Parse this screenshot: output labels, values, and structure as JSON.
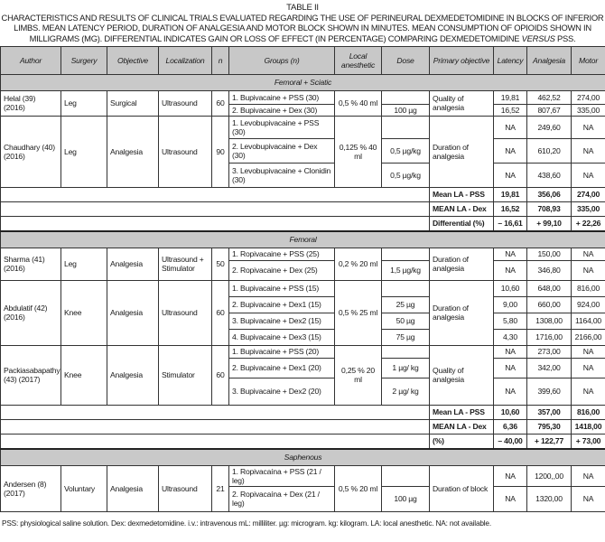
{
  "caption": {
    "label": "TABLE II",
    "text_before": "CHARACTERISTICS AND RESULTS OF CLINICAL TRIALS EVALUATED REGARDING THE USE OF PERINEURAL DEXMEDETOMIDINE IN BLOCKS OF INFERIOR LIMBS. MEAN LATENCY PERIOD, DURATION OF ANALGESIA AND MOTOR BLOCK SHOWN IN MINUTES. MEAN CONSUMPTION OF OPIOIDS SHOWN IN MILLIGRAMS (MG). DIFFERENTIAL INDICATES GAIN OR LOSS OF EFFECT (IN PERCENTAGE) COMPARING DEXMEDETOMIDINE ",
    "text_italic": "VERSUS",
    "text_after": " PSS."
  },
  "columns": [
    "Author",
    "Surgery",
    "Objective",
    "Localization",
    "n",
    "Groups (n)",
    "Local anesthetic",
    "Dose",
    "Primary objective",
    "Latency",
    "Analgesia",
    "Motor"
  ],
  "sections": [
    {
      "title": "Femoral + Sciatic",
      "studies": [
        {
          "author": "Helal (39) (2016)",
          "surgery": "Leg",
          "objective": "Surgical",
          "localization": "Ultrasound",
          "n": "60",
          "local_anesthetic": "0,5 % 40 ml",
          "primary_objective": "Quality of analgesia",
          "groups": [
            {
              "group": "1. Bupivacaine + PSS (30)",
              "dose": "",
              "latency": "19,81",
              "analgesia": "462,52",
              "motor": "274,00"
            },
            {
              "group": "2. Bupivacaine + Dex (30)",
              "dose": "100 µg",
              "latency": "16,52",
              "analgesia": "807,67",
              "motor": "335,00"
            }
          ]
        },
        {
          "author": "Chaudhary (40) (2016)",
          "surgery": "Leg",
          "objective": "Analgesia",
          "localization": "Ultrasound",
          "n": "90",
          "local_anesthetic": "0,125 % 40 ml",
          "primary_objective": "Duration of analgesia",
          "groups": [
            {
              "group": "1. Levobupivacaine + PSS (30)",
              "dose": "",
              "latency": "NA",
              "analgesia": "249,60",
              "motor": "NA"
            },
            {
              "group": "2. Levobupivacaine + Dex (30)",
              "dose": "0,5 µg/kg",
              "latency": "NA",
              "analgesia": "610,20",
              "motor": "NA"
            },
            {
              "group": "3. Levobupivacaine + Clonidin (30)",
              "dose": "0,5 µg/kg",
              "latency": "NA",
              "analgesia": "438,60",
              "motor": "NA"
            }
          ]
        }
      ],
      "summary": [
        {
          "label": "Mean LA - PSS",
          "latency": "19,81",
          "analgesia": "356,06",
          "motor": "274,00"
        },
        {
          "label": "MEAN LA - Dex",
          "latency": "16,52",
          "analgesia": "708,93",
          "motor": "335,00"
        },
        {
          "label": "Differential (%)",
          "latency": "– 16,61",
          "analgesia": "+ 99,10",
          "motor": "+ 22,26"
        }
      ]
    },
    {
      "title": "Femoral",
      "studies": [
        {
          "author": "Sharma (41) (2016)",
          "surgery": "Leg",
          "objective": "Analgesia",
          "localization": "Ultrasound + Stimulator",
          "n": "50",
          "local_anesthetic": "0,2 % 20 ml",
          "primary_objective": "Duration of analgesia",
          "groups": [
            {
              "group": "1. Ropivacaine + PSS (25)",
              "dose": "",
              "latency": "NA",
              "analgesia": "150,00",
              "motor": "NA"
            },
            {
              "group": "2. Ropivacaine + Dex (25)",
              "dose": "1,5 µg/kg",
              "latency": "NA",
              "analgesia": "346,80",
              "motor": "NA"
            }
          ]
        },
        {
          "author": "Abdulatif (42) (2016)",
          "surgery": "Knee",
          "objective": "Analgesia",
          "localization": "Ultrasound",
          "n": "60",
          "local_anesthetic": "0,5 % 25 ml",
          "primary_objective": "Duration of analgesia",
          "groups": [
            {
              "group": "1. Bupivacaine + PSS (15)",
              "dose": "",
              "latency": "10,60",
              "analgesia": "648,00",
              "motor": "816,00"
            },
            {
              "group": "2. Bupivacaine + Dex1 (15)",
              "dose": "25 µg",
              "latency": "9,00",
              "analgesia": "660,00",
              "motor": "924,00"
            },
            {
              "group": "3. Bupivacaine + Dex2 (15)",
              "dose": "50 µg",
              "latency": "5,80",
              "analgesia": "1308,00",
              "motor": "1164,00"
            },
            {
              "group": "4. Bupivacaine + Dex3 (15)",
              "dose": "75 µg",
              "latency": "4,30",
              "analgesia": "1716,00",
              "motor": "2166,00"
            }
          ]
        },
        {
          "author": "Packiasabapathy (43) (2017)",
          "surgery": "Knee",
          "objective": "Analgesia",
          "localization": "Stimulator",
          "n": "60",
          "local_anesthetic": "0,25 % 20 ml",
          "primary_objective": "Quality of analgesia",
          "groups": [
            {
              "group": "1. Bupivacaine + PSS (20)",
              "dose": "",
              "latency": "NA",
              "analgesia": "273,00",
              "motor": "NA"
            },
            {
              "group": "2. Bupivacaine + Dex1 (20)",
              "dose": "1 µg/ kg",
              "latency": "NA",
              "analgesia": "342,00",
              "motor": "NA"
            },
            {
              "group": "3. Bupivacaine + Dex2 (20)",
              "dose": "2 µg/ kg",
              "latency": "NA",
              "analgesia": "399,60",
              "motor": "NA"
            }
          ]
        }
      ],
      "summary": [
        {
          "label": "Mean LA - PSS",
          "latency": "10,60",
          "analgesia": "357,00",
          "motor": "816,00"
        },
        {
          "label": "MEAN LA - Dex",
          "latency": "6,36",
          "analgesia": "795,30",
          "motor": "1418,00"
        },
        {
          "label": "(%)",
          "latency": "– 40,00",
          "analgesia": "+ 122,77",
          "motor": "+ 73,00"
        }
      ]
    },
    {
      "title": "Saphenous",
      "studies": [
        {
          "author": "Andersen (8) (2017)",
          "surgery": "Voluntary",
          "objective": "Analgesia",
          "localization": "Ultrasound",
          "n": "21",
          "local_anesthetic": "0,5 % 20 ml",
          "primary_objective": "Duration of block",
          "groups": [
            {
              "group": "1. Ropivacaína + PSS (21 / leg)",
              "dose": "",
              "latency": "NA",
              "analgesia": "1200,,00",
              "motor": "NA"
            },
            {
              "group": "2. Ropivacaína + Dex (21 / leg)",
              "dose": "100 µg",
              "latency": "NA",
              "analgesia": "1320,00",
              "motor": "NA"
            }
          ]
        }
      ],
      "summary": []
    }
  ],
  "footnote": "PSS: physiological saline solution. Dex: dexmedetomidine. i.v.: intravenous mL: milliliter. µg: microgram. kg: kilogram. LA: local anesthetic. NA: not available."
}
